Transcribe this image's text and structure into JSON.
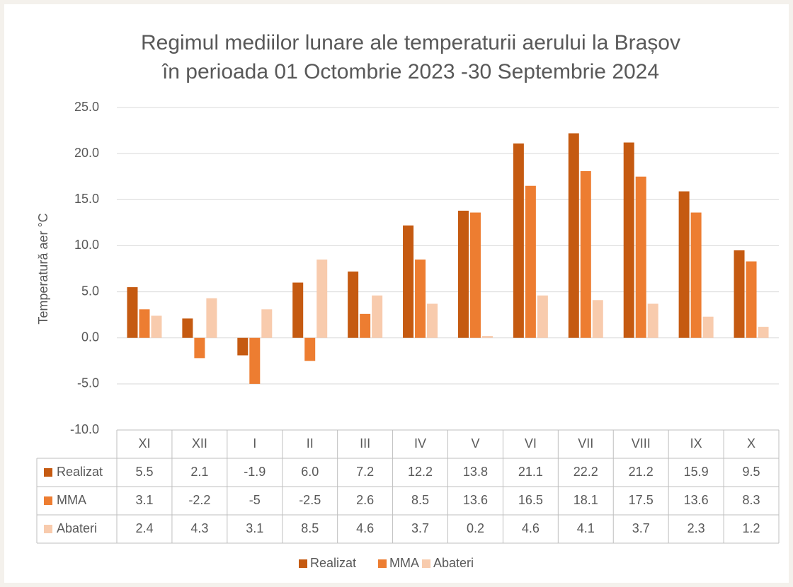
{
  "chart_data": {
    "type": "bar",
    "title": [
      "Regimul mediilor lunare ale temperaturii aerului la Brașov",
      "în perioada 01 Octombrie 2023 -30 Septembrie 2024"
    ],
    "ylabel": "Temperatură aer °C",
    "categories": [
      "XI",
      "XII",
      "I",
      "II",
      "III",
      "IV",
      "V",
      "VI",
      "VII",
      "VIII",
      "IX",
      "X"
    ],
    "series": [
      {
        "name": "Realizat",
        "color": "#c55a11",
        "values": [
          5.5,
          2.1,
          -1.9,
          6,
          7.2,
          12.2,
          13.8,
          21.1,
          22.2,
          21.2,
          15.9,
          9.5
        ],
        "value_labels": [
          "5.5",
          "2.1",
          "-1.9",
          "6.0",
          "7.2",
          "12.2",
          "13.8",
          "21.1",
          "22.2",
          "21.2",
          "15.9",
          "9.5"
        ]
      },
      {
        "name": "MMA",
        "color": "#ed7d31",
        "values": [
          3.1,
          -2.2,
          -5,
          -2.5,
          2.6,
          8.5,
          13.6,
          16.5,
          18.1,
          17.5,
          13.6,
          8.3
        ]
      },
      {
        "name": "Abateri",
        "color": "#f8cbad",
        "values": [
          2.4,
          4.3,
          3.1,
          8.5,
          4.6,
          3.7,
          0.2,
          4.6,
          4.1,
          3.7,
          2.3,
          1.2
        ]
      }
    ],
    "ylim": [
      -10,
      25
    ],
    "yticks": [
      {
        "value": -10,
        "label": "-10.0"
      },
      {
        "value": -5,
        "label": "-5.0"
      },
      {
        "value": 0,
        "label": "0.0"
      },
      {
        "value": 5,
        "label": "5.0"
      },
      {
        "value": 10,
        "label": "10.0"
      },
      {
        "value": 15,
        "label": "15.0"
      },
      {
        "value": 20,
        "label": "20.0"
      },
      {
        "value": 25,
        "label": "25.0"
      }
    ],
    "grid": true,
    "legend": "bottom",
    "data_table": true
  }
}
